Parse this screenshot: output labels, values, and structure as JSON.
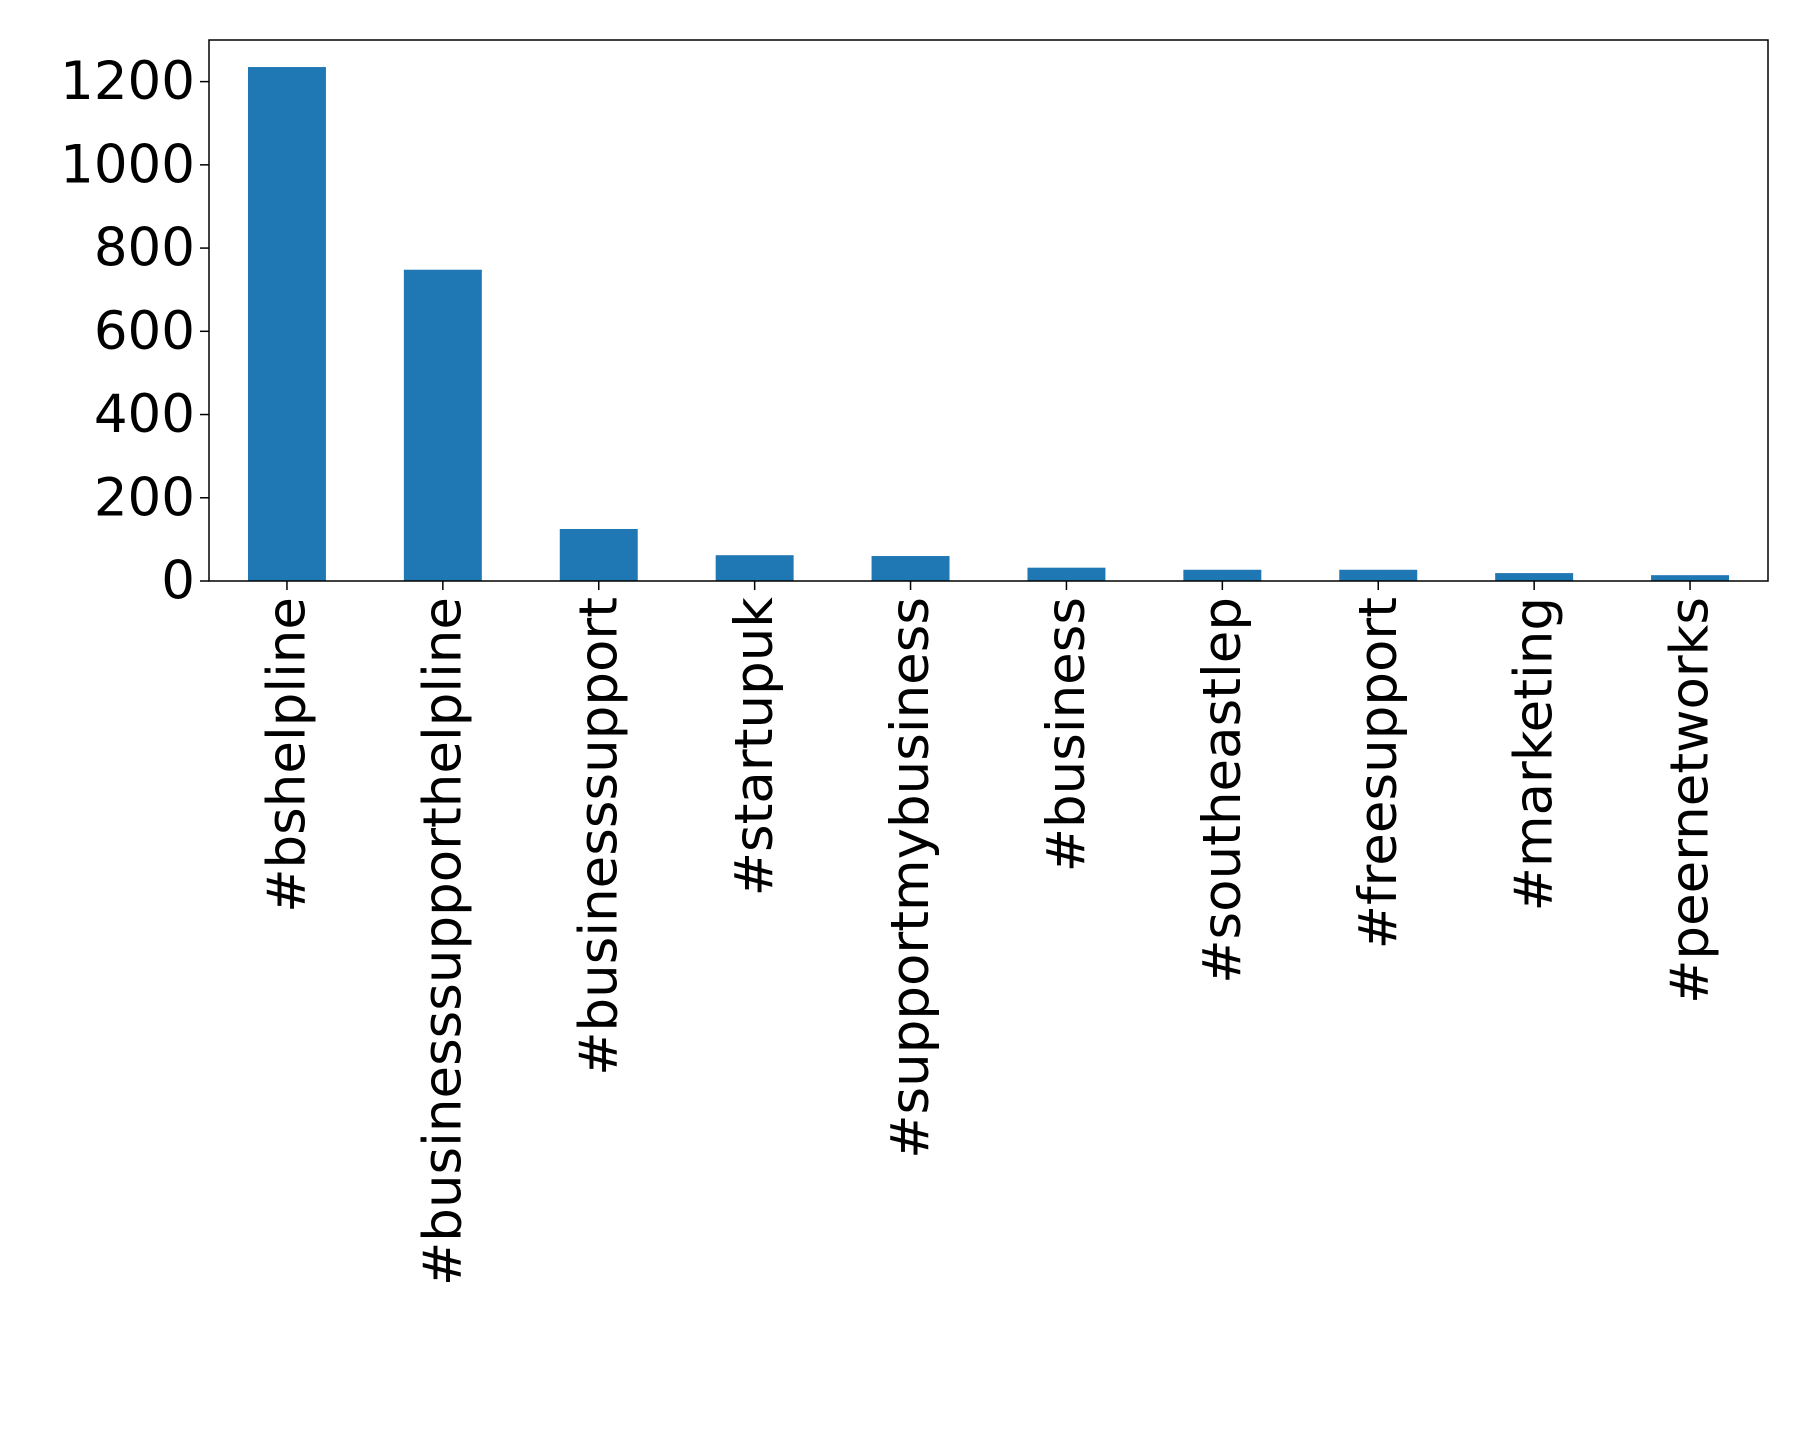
{
  "chart_data": {
    "type": "bar",
    "title": "",
    "xlabel": "",
    "ylabel": "",
    "categories": [
      "#bshelpline",
      "#businesssupporthelpline",
      "#businesssupport",
      "#startupuk",
      "#supportmybusiness",
      "#business",
      "#southeastlep",
      "#freesupport",
      "#marketing",
      "#peernetworks"
    ],
    "values": [
      1235,
      748,
      125,
      62,
      60,
      32,
      27,
      27,
      19,
      14
    ],
    "ylim": [
      0,
      1300
    ],
    "yticks": [
      0,
      200,
      400,
      600,
      800,
      1000,
      1200
    ],
    "bar_color": "#1f77b4",
    "grid": false,
    "legend": "none"
  }
}
